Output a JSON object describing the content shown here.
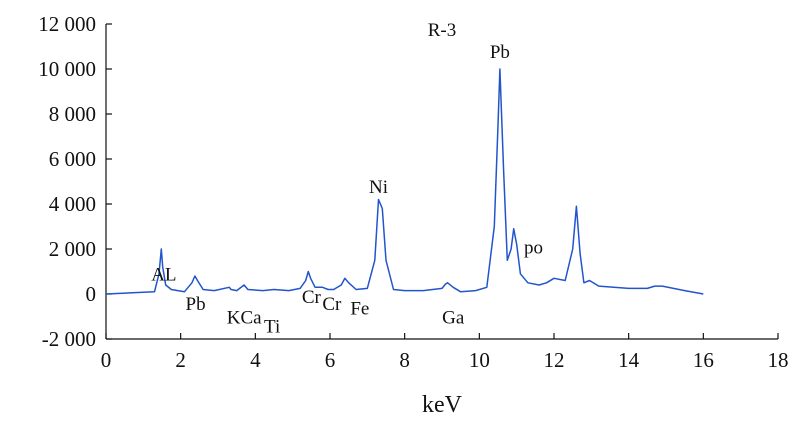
{
  "chart_data": {
    "type": "line",
    "title": "R-3",
    "xlabel": "keV",
    "ylabel": "",
    "xlim": [
      0,
      18
    ],
    "ylim": [
      -2000,
      12000
    ],
    "x_ticks": [
      0,
      2,
      4,
      6,
      8,
      10,
      12,
      14,
      16,
      18
    ],
    "x_tick_labels": [
      "0",
      "2",
      "4",
      "6",
      "8",
      "10",
      "12",
      "14",
      "16",
      "18"
    ],
    "y_ticks": [
      -2000,
      0,
      2000,
      4000,
      6000,
      8000,
      10000,
      12000
    ],
    "y_tick_labels": [
      "-2 000",
      "0",
      "2 000",
      "4 000",
      "6 000",
      "8 000",
      "10 000",
      "12 000"
    ],
    "grid": false,
    "line_color": "#2255cc",
    "series": [
      {
        "x": [
          0.0,
          1.3,
          1.42,
          1.48,
          1.52,
          1.6,
          1.75,
          2.1,
          2.3,
          2.38,
          2.45,
          2.6,
          2.9,
          3.3,
          3.35,
          3.5,
          3.7,
          3.8,
          4.2,
          4.5,
          4.9,
          5.2,
          5.35,
          5.42,
          5.48,
          5.6,
          5.8,
          5.95,
          6.1,
          6.3,
          6.4,
          6.5,
          6.7,
          7.0,
          7.2,
          7.3,
          7.4,
          7.5,
          7.7,
          8.0,
          8.5,
          9.0,
          9.1,
          9.15,
          9.3,
          9.5,
          9.9,
          10.2,
          10.4,
          10.5,
          10.55,
          10.65,
          10.75,
          10.85,
          10.92,
          11.0,
          11.1,
          11.3,
          11.6,
          11.8,
          12.0,
          12.3,
          12.5,
          12.6,
          12.7,
          12.8,
          12.95,
          13.2,
          13.6,
          14.0,
          14.5,
          14.7,
          14.9,
          15.2,
          15.5,
          16.0
        ],
        "y": [
          0,
          100,
          900,
          2000,
          1200,
          400,
          200,
          100,
          500,
          800,
          600,
          200,
          150,
          300,
          200,
          150,
          400,
          200,
          150,
          200,
          150,
          250,
          600,
          1000,
          700,
          300,
          300,
          200,
          200,
          400,
          700,
          500,
          200,
          250,
          1500,
          4200,
          3800,
          1500,
          200,
          150,
          150,
          250,
          450,
          500,
          300,
          100,
          150,
          300,
          3000,
          7500,
          10000,
          5500,
          1500,
          2000,
          2900,
          2200,
          900,
          500,
          400,
          500,
          700,
          600,
          2000,
          3900,
          1800,
          500,
          600,
          350,
          300,
          250,
          250,
          350,
          350,
          250,
          150,
          0
        ]
      }
    ],
    "annotations": [
      {
        "text": "AL",
        "x": 1.55,
        "y": 600
      },
      {
        "text": "Pb",
        "x": 2.4,
        "y": -700
      },
      {
        "text": "KCa",
        "x": 3.7,
        "y": -1300
      },
      {
        "text": "Ti",
        "x": 4.45,
        "y": -1700
      },
      {
        "text": "Cr",
        "x": 5.5,
        "y": -400
      },
      {
        "text": "Cr",
        "x": 6.05,
        "y": -700
      },
      {
        "text": "Fe",
        "x": 6.8,
        "y": -900
      },
      {
        "text": "Ni",
        "x": 7.3,
        "y": 4500
      },
      {
        "text": "Ga",
        "x": 9.3,
        "y": -1300
      },
      {
        "text": "Pb",
        "x": 10.55,
        "y": 10500
      },
      {
        "text": "po",
        "x": 11.45,
        "y": 1800
      }
    ]
  }
}
